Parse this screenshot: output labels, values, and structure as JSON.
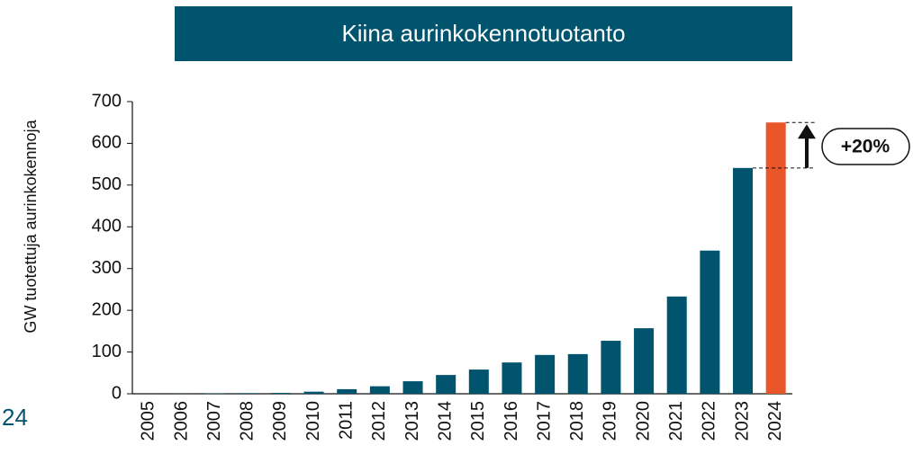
{
  "chart_data": {
    "type": "bar",
    "title": "Kiina aurinkokennotuotanto",
    "ylabel": "GW tuotettuja aurinkokennoja",
    "categories": [
      "2005",
      "2006",
      "2007",
      "2008",
      "2009",
      "2010",
      "2011",
      "2012",
      "2013",
      "2014",
      "2015",
      "2016",
      "2017",
      "2018",
      "2019",
      "2020",
      "2021",
      "2022",
      "2023",
      "2024"
    ],
    "values": [
      0.2,
      0.4,
      1,
      1.5,
      2,
      5,
      11,
      18,
      30,
      45,
      58,
      75,
      93,
      95,
      127,
      157,
      233,
      343,
      541,
      650
    ],
    "colors": [
      "#00546e",
      "#00546e",
      "#00546e",
      "#00546e",
      "#00546e",
      "#00546e",
      "#00546e",
      "#00546e",
      "#00546e",
      "#00546e",
      "#00546e",
      "#00546e",
      "#00546e",
      "#00546e",
      "#00546e",
      "#00546e",
      "#00546e",
      "#00546e",
      "#00546e",
      "#e8562a"
    ],
    "ylim": [
      0,
      700
    ],
    "yticks": [
      0,
      100,
      200,
      300,
      400,
      500,
      600,
      700
    ],
    "annotation": "+20%",
    "page_number": "24"
  }
}
